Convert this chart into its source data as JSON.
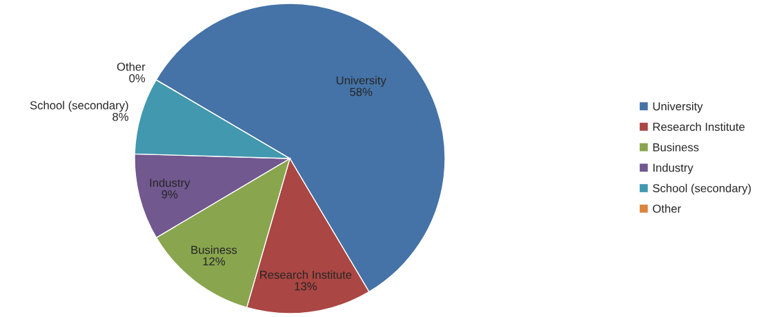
{
  "chart_data": {
    "type": "pie",
    "categories": [
      "University",
      "Research Institute",
      "Business",
      "Industry",
      "School (secondary)",
      "Other"
    ],
    "values": [
      58,
      13,
      12,
      9,
      8,
      0
    ],
    "value_labels": [
      "58%",
      "13%",
      "12%",
      "9%",
      "8%",
      "0%"
    ],
    "colors": [
      "#4573a7",
      "#aa4643",
      "#89a54e",
      "#71588f",
      "#4198af",
      "#db843d"
    ],
    "legend": "right"
  }
}
